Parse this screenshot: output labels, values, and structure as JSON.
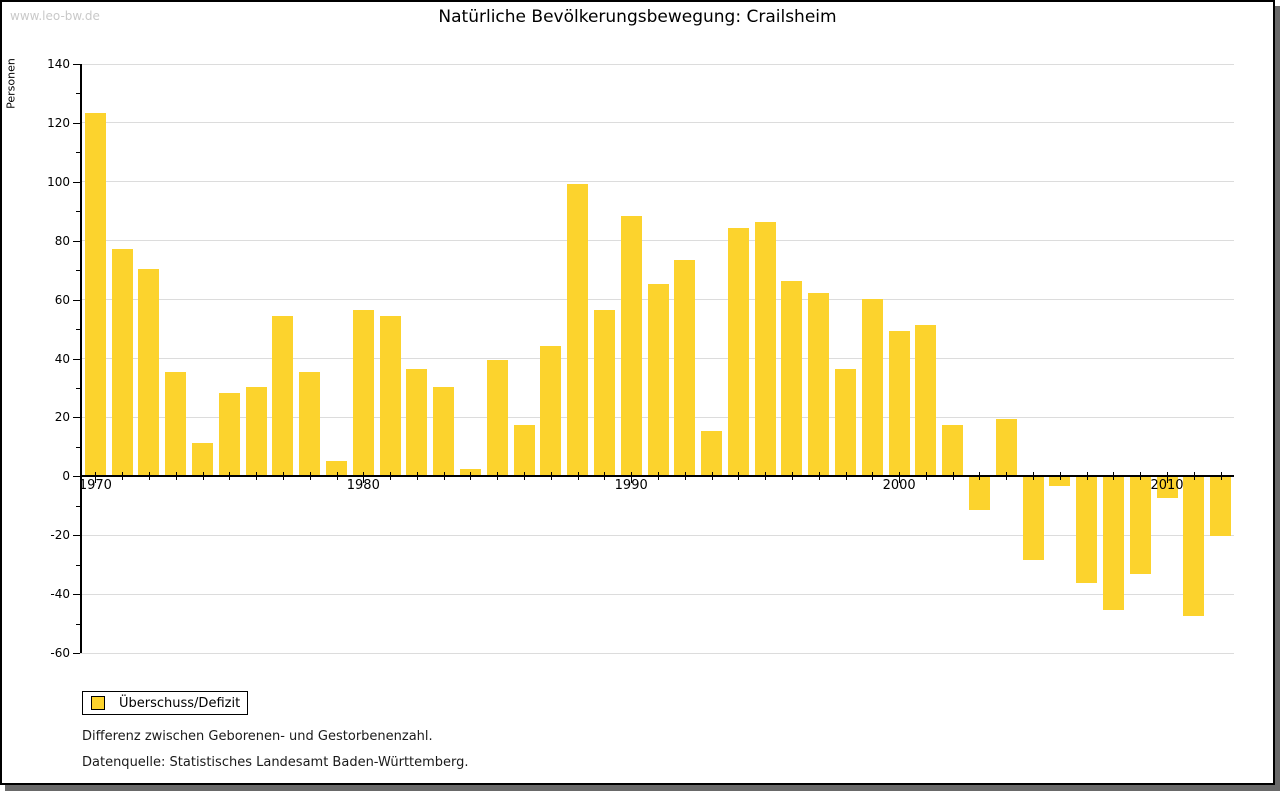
{
  "watermark": "www.leo-bw.de",
  "title": "Natürliche Bevölkerungsbewegung: Crailsheim",
  "ylabel": "Personen",
  "legend": {
    "label": "Überschuss/Defizit"
  },
  "caption_line1": "Differenz zwischen Geborenen- und Gestorbenenzahl.",
  "caption_line2": "Datenquelle: Statistisches Landesamt Baden-Württemberg.",
  "colors": {
    "bar": "#FCD32D",
    "grid": "#DCDCDC",
    "axis": "#000000",
    "text": "#1A1A1A",
    "watermark": "#C9C9C9",
    "shadow": "#696969",
    "background": "#FFFFFF"
  },
  "chart_data": {
    "type": "bar",
    "title": "Natürliche Bevölkerungsbewegung: Crailsheim",
    "series_name": "Überschuss/Defizit",
    "xlabel": "",
    "ylabel": "Personen",
    "x": [
      1970,
      1971,
      1972,
      1973,
      1974,
      1975,
      1976,
      1977,
      1978,
      1979,
      1980,
      1981,
      1982,
      1983,
      1984,
      1985,
      1986,
      1987,
      1988,
      1989,
      1990,
      1991,
      1992,
      1993,
      1994,
      1995,
      1996,
      1997,
      1998,
      1999,
      2000,
      2001,
      2002,
      2003,
      2004,
      2005,
      2006,
      2007,
      2008,
      2009,
      2010,
      2011,
      2012
    ],
    "values": [
      123,
      77,
      70,
      35,
      11,
      28,
      30,
      54,
      35,
      5,
      56,
      54,
      36,
      30,
      2,
      39,
      17,
      44,
      99,
      56,
      88,
      65,
      73,
      15,
      84,
      86,
      66,
      62,
      36,
      60,
      49,
      51,
      17,
      -11,
      19,
      -28,
      -3,
      -36,
      -45,
      -33,
      -7,
      -47,
      -20
    ],
    "ylim": [
      -60,
      140
    ],
    "ytick_step": 20,
    "ytick_minor_step": 10,
    "xticks_labeled": [
      1970,
      1980,
      1990,
      2000,
      2010
    ],
    "grid": true,
    "legend_position": "bottom-left"
  }
}
